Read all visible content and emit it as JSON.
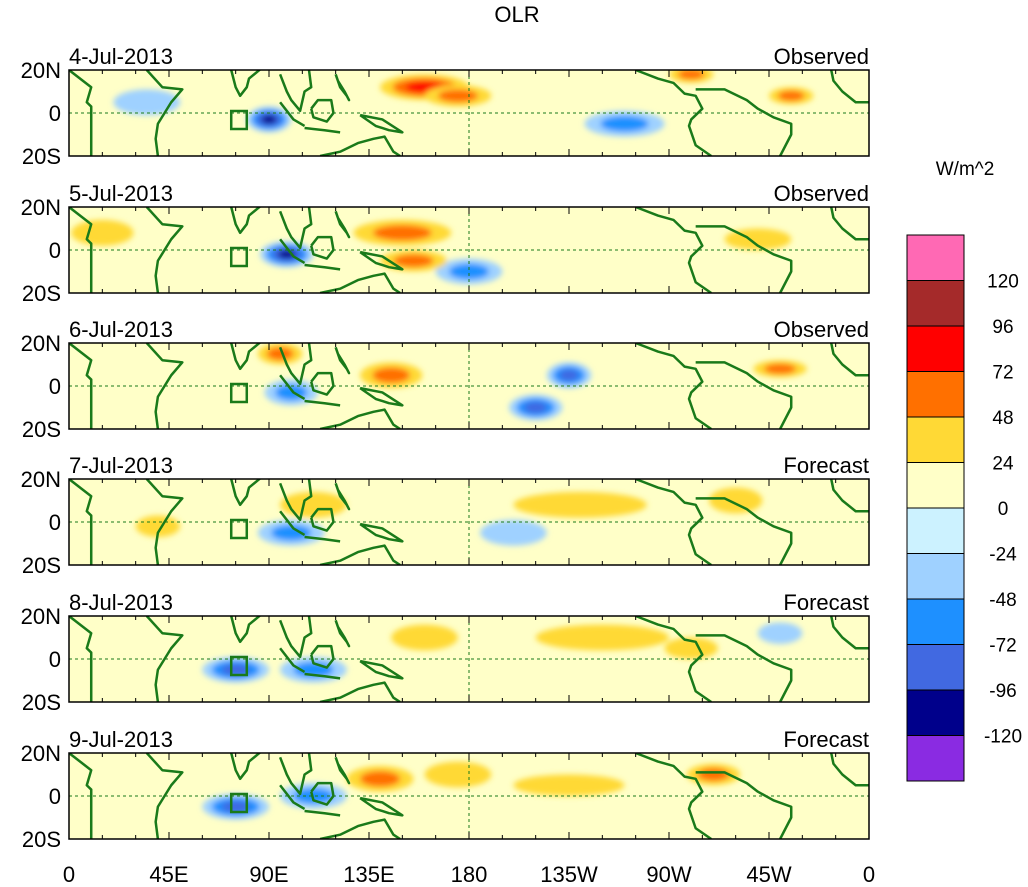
{
  "chart_data": {
    "type": "heatmap",
    "title": "OLR",
    "units": "W/m^2",
    "x_ticks": [
      "0",
      "45E",
      "90E",
      "135E",
      "180",
      "135W",
      "90W",
      "45W",
      "0"
    ],
    "x_range_deg_east": [
      0,
      360
    ],
    "y_ticks": [
      "20N",
      "0",
      "20S"
    ],
    "y_range_deg": [
      -20,
      20
    ],
    "colorbar": {
      "labels": [
        "120",
        "96",
        "72",
        "48",
        "24",
        "0",
        "-24",
        "-48",
        "-72",
        "-96",
        "-120"
      ],
      "levels": [
        120,
        96,
        72,
        48,
        24,
        0,
        -24,
        -48,
        -72,
        -96,
        -120
      ],
      "colors": [
        "#ff69b4",
        "#a52a2a",
        "#ff0000",
        "#ff7000",
        "#ffd935",
        "#ffffc8",
        "#ccf2ff",
        "#9fd1ff",
        "#1e90ff",
        "#4169e1",
        "#00008b",
        "#8a2be2"
      ]
    },
    "panels": [
      {
        "date": "4-Jul-2013",
        "source": "Observed"
      },
      {
        "date": "5-Jul-2013",
        "source": "Observed"
      },
      {
        "date": "6-Jul-2013",
        "source": "Observed"
      },
      {
        "date": "7-Jul-2013",
        "source": "Forecast"
      },
      {
        "date": "8-Jul-2013",
        "source": "Forecast"
      },
      {
        "date": "9-Jul-2013",
        "source": "Forecast"
      }
    ],
    "anomaly_blobs": [
      [
        [
          160,
          12,
          20,
          6,
          72
        ],
        [
          175,
          8,
          15,
          5,
          48
        ],
        [
          250,
          -5,
          18,
          6,
          -48
        ],
        [
          90,
          -3,
          10,
          6,
          -96
        ],
        [
          280,
          18,
          10,
          4,
          48
        ],
        [
          325,
          8,
          10,
          4,
          48
        ],
        [
          35,
          5,
          15,
          6,
          -24
        ]
      ],
      [
        [
          150,
          8,
          22,
          6,
          48
        ],
        [
          98,
          -2,
          12,
          6,
          -96
        ],
        [
          180,
          -10,
          15,
          6,
          -48
        ],
        [
          155,
          -5,
          15,
          5,
          48
        ],
        [
          15,
          8,
          14,
          6,
          24
        ],
        [
          310,
          5,
          15,
          5,
          24
        ]
      ],
      [
        [
          145,
          5,
          14,
          6,
          48
        ],
        [
          225,
          5,
          10,
          6,
          -72
        ],
        [
          210,
          -10,
          12,
          6,
          -72
        ],
        [
          100,
          -3,
          12,
          6,
          -48
        ],
        [
          95,
          15,
          10,
          5,
          48
        ],
        [
          320,
          8,
          12,
          4,
          48
        ]
      ],
      [
        [
          230,
          8,
          30,
          6,
          24
        ],
        [
          100,
          -5,
          15,
          6,
          -48
        ],
        [
          110,
          8,
          15,
          6,
          24
        ],
        [
          200,
          -5,
          15,
          6,
          -24
        ],
        [
          40,
          -2,
          10,
          5,
          24
        ],
        [
          300,
          10,
          12,
          6,
          24
        ]
      ],
      [
        [
          240,
          10,
          30,
          6,
          24
        ],
        [
          75,
          -5,
          15,
          6,
          -72
        ],
        [
          160,
          10,
          15,
          6,
          24
        ],
        [
          110,
          -5,
          15,
          6,
          -48
        ],
        [
          280,
          5,
          12,
          5,
          24
        ],
        [
          320,
          12,
          10,
          5,
          -24
        ]
      ],
      [
        [
          140,
          8,
          15,
          6,
          48
        ],
        [
          75,
          -5,
          15,
          6,
          -72
        ],
        [
          175,
          10,
          15,
          6,
          24
        ],
        [
          110,
          0,
          15,
          6,
          -48
        ],
        [
          290,
          10,
          12,
          5,
          48
        ],
        [
          225,
          5,
          25,
          5,
          24
        ]
      ]
    ]
  }
}
